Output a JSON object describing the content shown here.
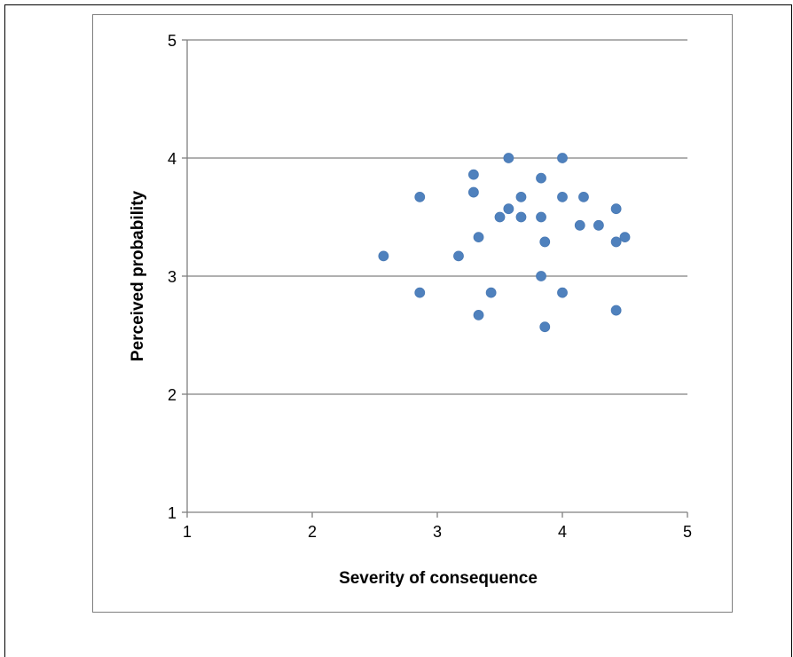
{
  "chart_data": {
    "type": "scatter",
    "title": "",
    "xlabel": "Severity of consequence",
    "ylabel": "Perceived probability",
    "xlim": [
      1,
      5
    ],
    "ylim": [
      1,
      5
    ],
    "xticks": [
      "1",
      "2",
      "3",
      "4",
      "5"
    ],
    "yticks": [
      "1",
      "2",
      "3",
      "4",
      "5"
    ],
    "grid": "horizontal major gridlines",
    "legend": "none",
    "colors": {
      "marker": "#4f81bd",
      "gridline": "#808080",
      "axis": "#808080"
    },
    "series": [
      {
        "marker": "circle",
        "points": [
          {
            "x": 2.57,
            "y": 3.17
          },
          {
            "x": 2.86,
            "y": 3.67
          },
          {
            "x": 2.86,
            "y": 2.86
          },
          {
            "x": 3.17,
            "y": 3.17
          },
          {
            "x": 3.29,
            "y": 3.86
          },
          {
            "x": 3.29,
            "y": 3.71
          },
          {
            "x": 3.33,
            "y": 3.33
          },
          {
            "x": 3.33,
            "y": 2.67
          },
          {
            "x": 3.43,
            "y": 2.86
          },
          {
            "x": 3.5,
            "y": 3.5
          },
          {
            "x": 3.57,
            "y": 4.0
          },
          {
            "x": 3.57,
            "y": 3.57
          },
          {
            "x": 3.67,
            "y": 3.67
          },
          {
            "x": 3.67,
            "y": 3.5
          },
          {
            "x": 3.83,
            "y": 3.83
          },
          {
            "x": 3.83,
            "y": 3.5
          },
          {
            "x": 3.83,
            "y": 3.0
          },
          {
            "x": 3.86,
            "y": 3.29
          },
          {
            "x": 3.86,
            "y": 2.57
          },
          {
            "x": 4.0,
            "y": 4.0
          },
          {
            "x": 4.0,
            "y": 3.67
          },
          {
            "x": 4.0,
            "y": 2.86
          },
          {
            "x": 4.14,
            "y": 3.43
          },
          {
            "x": 4.17,
            "y": 3.67
          },
          {
            "x": 4.29,
            "y": 3.43
          },
          {
            "x": 4.43,
            "y": 3.57
          },
          {
            "x": 4.43,
            "y": 3.29
          },
          {
            "x": 4.43,
            "y": 2.71
          },
          {
            "x": 4.5,
            "y": 3.33
          }
        ]
      }
    ]
  }
}
